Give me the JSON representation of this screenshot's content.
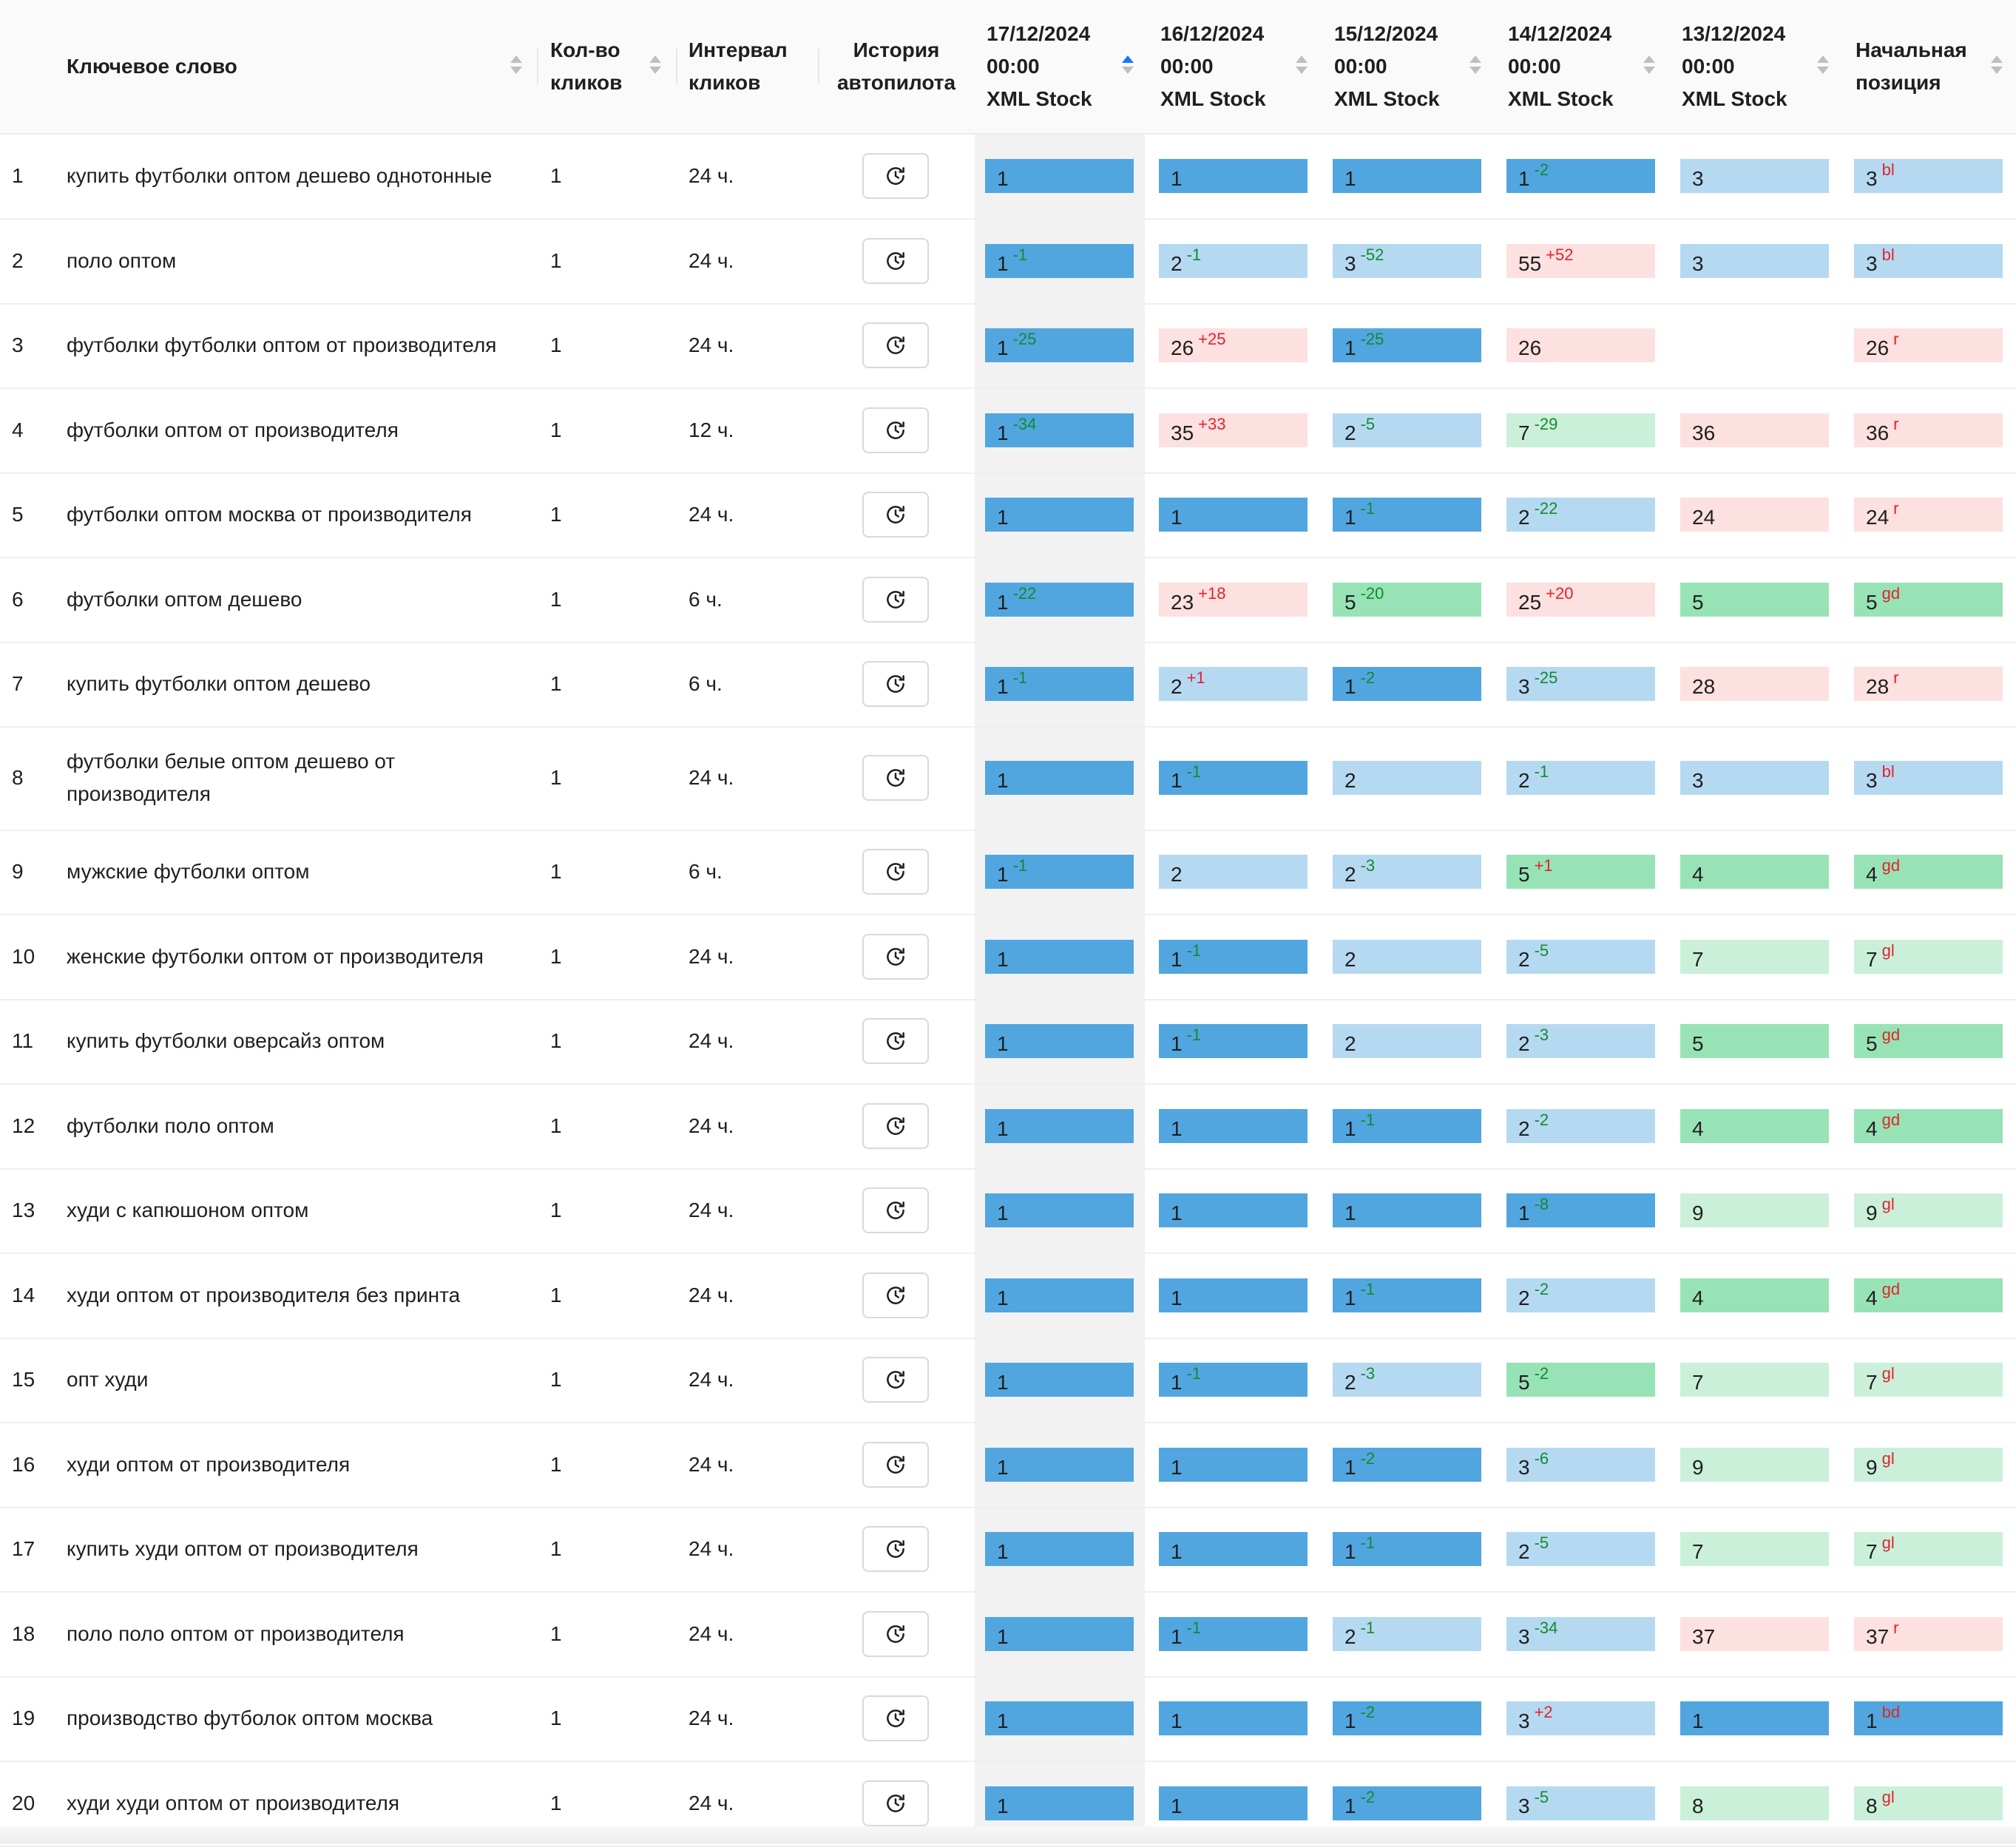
{
  "colors": {
    "blue_dark": "#52a6e0",
    "blue_light": "#b6d9f2",
    "green_dark": "#98e3b5",
    "green_light": "#caf0da",
    "red_light": "#fde0e0",
    "delta_improve": "#138a2e",
    "delta_worse": "#e0242b",
    "sort_active": "#1677ff"
  },
  "headers": {
    "keyword": "Ключевое слово",
    "clicks": "Кол-во\nкликов",
    "interval": "Интервал\nкликов",
    "history": "История\nавтопилота",
    "dates": [
      "17/12/2024\n00:00\nXML Stock",
      "16/12/2024\n00:00\nXML Stock",
      "15/12/2024\n00:00\nXML Stock",
      "14/12/2024\n00:00\nXML Stock",
      "13/12/2024\n00:00\nXML Stock"
    ],
    "start": "Начальная\nпозиция"
  },
  "rows": [
    {
      "num": "1",
      "kw": "купить футболки оптом дешево однотонные",
      "clicks": "1",
      "interval": "24 ч.",
      "cells": [
        [
          "1",
          "",
          "bd"
        ],
        [
          "1",
          "",
          "bd"
        ],
        [
          "1",
          "",
          "bd"
        ],
        [
          "1",
          "-2",
          "bd"
        ],
        [
          "3",
          "",
          "bl"
        ]
      ],
      "start": [
        "3",
        "bl"
      ]
    },
    {
      "num": "2",
      "kw": "поло оптом",
      "clicks": "1",
      "interval": "24 ч.",
      "cells": [
        [
          "1",
          "-1",
          "bd"
        ],
        [
          "2",
          "-1",
          "bl"
        ],
        [
          "3",
          "-52",
          "bl"
        ],
        [
          "55",
          "+52",
          "r"
        ],
        [
          "3",
          "",
          "bl"
        ]
      ],
      "start": [
        "3",
        "bl"
      ]
    },
    {
      "num": "3",
      "kw": "футболки футболки оптом от производителя",
      "clicks": "1",
      "interval": "24 ч.",
      "cells": [
        [
          "1",
          "-25",
          "bd"
        ],
        [
          "26",
          "+25",
          "r"
        ],
        [
          "1",
          "-25",
          "bd"
        ],
        [
          "26",
          "",
          "r"
        ],
        [
          "",
          "",
          "none"
        ]
      ],
      "start": [
        "26",
        "r"
      ]
    },
    {
      "num": "4",
      "kw": "футболки оптом от производителя",
      "clicks": "1",
      "interval": "12 ч.",
      "cells": [
        [
          "1",
          "-34",
          "bd"
        ],
        [
          "35",
          "+33",
          "r"
        ],
        [
          "2",
          "-5",
          "bl"
        ],
        [
          "7",
          "-29",
          "gl"
        ],
        [
          "36",
          "",
          "r"
        ]
      ],
      "start": [
        "36",
        "r"
      ]
    },
    {
      "num": "5",
      "kw": "футболки оптом москва от производителя",
      "clicks": "1",
      "interval": "24 ч.",
      "cells": [
        [
          "1",
          "",
          "bd"
        ],
        [
          "1",
          "",
          "bd"
        ],
        [
          "1",
          "-1",
          "bd"
        ],
        [
          "2",
          "-22",
          "bl"
        ],
        [
          "24",
          "",
          "r"
        ]
      ],
      "start": [
        "24",
        "r"
      ]
    },
    {
      "num": "6",
      "kw": "футболки оптом дешево",
      "clicks": "1",
      "interval": "6 ч.",
      "cells": [
        [
          "1",
          "-22",
          "bd"
        ],
        [
          "23",
          "+18",
          "r"
        ],
        [
          "5",
          "-20",
          "gd"
        ],
        [
          "25",
          "+20",
          "r"
        ],
        [
          "5",
          "",
          "gd"
        ]
      ],
      "start": [
        "5",
        "gd"
      ]
    },
    {
      "num": "7",
      "kw": "купить футболки оптом дешево",
      "clicks": "1",
      "interval": "6 ч.",
      "cells": [
        [
          "1",
          "-1",
          "bd"
        ],
        [
          "2",
          "+1",
          "bl"
        ],
        [
          "1",
          "-2",
          "bd"
        ],
        [
          "3",
          "-25",
          "bl"
        ],
        [
          "28",
          "",
          "r"
        ]
      ],
      "start": [
        "28",
        "r"
      ]
    },
    {
      "num": "8",
      "kw": "футболки белые оптом дешево от производителя",
      "clicks": "1",
      "interval": "24 ч.",
      "cells": [
        [
          "1",
          "",
          "bd"
        ],
        [
          "1",
          "-1",
          "bd"
        ],
        [
          "2",
          "",
          "bl"
        ],
        [
          "2",
          "-1",
          "bl"
        ],
        [
          "3",
          "",
          "bl"
        ]
      ],
      "start": [
        "3",
        "bl"
      ]
    },
    {
      "num": "9",
      "kw": "мужские футболки оптом",
      "clicks": "1",
      "interval": "6 ч.",
      "cells": [
        [
          "1",
          "-1",
          "bd"
        ],
        [
          "2",
          "",
          "bl"
        ],
        [
          "2",
          "-3",
          "bl"
        ],
        [
          "5",
          "+1",
          "gd"
        ],
        [
          "4",
          "",
          "gd"
        ]
      ],
      "start": [
        "4",
        "gd"
      ]
    },
    {
      "num": "10",
      "kw": "женские футболки оптом от производителя",
      "clicks": "1",
      "interval": "24 ч.",
      "cells": [
        [
          "1",
          "",
          "bd"
        ],
        [
          "1",
          "-1",
          "bd"
        ],
        [
          "2",
          "",
          "bl"
        ],
        [
          "2",
          "-5",
          "bl"
        ],
        [
          "7",
          "",
          "gl"
        ]
      ],
      "start": [
        "7",
        "gl"
      ]
    },
    {
      "num": "11",
      "kw": "купить футболки оверсайз оптом",
      "clicks": "1",
      "interval": "24 ч.",
      "cells": [
        [
          "1",
          "",
          "bd"
        ],
        [
          "1",
          "-1",
          "bd"
        ],
        [
          "2",
          "",
          "bl"
        ],
        [
          "2",
          "-3",
          "bl"
        ],
        [
          "5",
          "",
          "gd"
        ]
      ],
      "start": [
        "5",
        "gd"
      ]
    },
    {
      "num": "12",
      "kw": "футболки поло оптом",
      "clicks": "1",
      "interval": "24 ч.",
      "cells": [
        [
          "1",
          "",
          "bd"
        ],
        [
          "1",
          "",
          "bd"
        ],
        [
          "1",
          "-1",
          "bd"
        ],
        [
          "2",
          "-2",
          "bl"
        ],
        [
          "4",
          "",
          "gd"
        ]
      ],
      "start": [
        "4",
        "gd"
      ]
    },
    {
      "num": "13",
      "kw": "худи с капюшоном оптом",
      "clicks": "1",
      "interval": "24 ч.",
      "cells": [
        [
          "1",
          "",
          "bd"
        ],
        [
          "1",
          "",
          "bd"
        ],
        [
          "1",
          "",
          "bd"
        ],
        [
          "1",
          "-8",
          "bd"
        ],
        [
          "9",
          "",
          "gl"
        ]
      ],
      "start": [
        "9",
        "gl"
      ]
    },
    {
      "num": "14",
      "kw": "худи оптом от производителя без принта",
      "clicks": "1",
      "interval": "24 ч.",
      "cells": [
        [
          "1",
          "",
          "bd"
        ],
        [
          "1",
          "",
          "bd"
        ],
        [
          "1",
          "-1",
          "bd"
        ],
        [
          "2",
          "-2",
          "bl"
        ],
        [
          "4",
          "",
          "gd"
        ]
      ],
      "start": [
        "4",
        "gd"
      ]
    },
    {
      "num": "15",
      "kw": "опт худи",
      "clicks": "1",
      "interval": "24 ч.",
      "cells": [
        [
          "1",
          "",
          "bd"
        ],
        [
          "1",
          "-1",
          "bd"
        ],
        [
          "2",
          "-3",
          "bl"
        ],
        [
          "5",
          "-2",
          "gd"
        ],
        [
          "7",
          "",
          "gl"
        ]
      ],
      "start": [
        "7",
        "gl"
      ]
    },
    {
      "num": "16",
      "kw": "худи оптом от производителя",
      "clicks": "1",
      "interval": "24 ч.",
      "cells": [
        [
          "1",
          "",
          "bd"
        ],
        [
          "1",
          "",
          "bd"
        ],
        [
          "1",
          "-2",
          "bd"
        ],
        [
          "3",
          "-6",
          "bl"
        ],
        [
          "9",
          "",
          "gl"
        ]
      ],
      "start": [
        "9",
        "gl"
      ]
    },
    {
      "num": "17",
      "kw": "купить худи оптом от производителя",
      "clicks": "1",
      "interval": "24 ч.",
      "cells": [
        [
          "1",
          "",
          "bd"
        ],
        [
          "1",
          "",
          "bd"
        ],
        [
          "1",
          "-1",
          "bd"
        ],
        [
          "2",
          "-5",
          "bl"
        ],
        [
          "7",
          "",
          "gl"
        ]
      ],
      "start": [
        "7",
        "gl"
      ]
    },
    {
      "num": "18",
      "kw": "поло поло оптом от производителя",
      "clicks": "1",
      "interval": "24 ч.",
      "cells": [
        [
          "1",
          "",
          "bd"
        ],
        [
          "1",
          "-1",
          "bd"
        ],
        [
          "2",
          "-1",
          "bl"
        ],
        [
          "3",
          "-34",
          "bl"
        ],
        [
          "37",
          "",
          "r"
        ]
      ],
      "start": [
        "37",
        "r"
      ]
    },
    {
      "num": "19",
      "kw": "производство футболок оптом москва",
      "clicks": "1",
      "interval": "24 ч.",
      "cells": [
        [
          "1",
          "",
          "bd"
        ],
        [
          "1",
          "",
          "bd"
        ],
        [
          "1",
          "-2",
          "bd"
        ],
        [
          "3",
          "+2",
          "bl"
        ],
        [
          "1",
          "",
          "bd"
        ]
      ],
      "start": [
        "1",
        "bd"
      ]
    },
    {
      "num": "20",
      "kw": "худи худи оптом от производителя",
      "clicks": "1",
      "interval": "24 ч.",
      "cells": [
        [
          "1",
          "",
          "bd"
        ],
        [
          "1",
          "",
          "bd"
        ],
        [
          "1",
          "-2",
          "bd"
        ],
        [
          "3",
          "-5",
          "bl"
        ],
        [
          "8",
          "",
          "gl"
        ]
      ],
      "start": [
        "8",
        "gl"
      ]
    }
  ],
  "history_icon": "history-clock-icon"
}
